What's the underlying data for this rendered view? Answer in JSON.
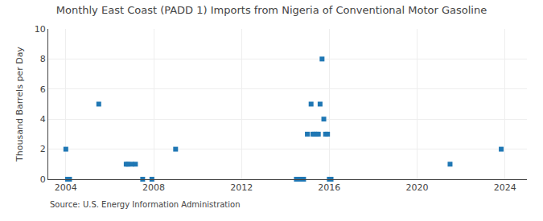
{
  "chart_data": {
    "type": "scatter",
    "title": "Monthly East Coast (PADD 1) Imports from Nigeria of Conventional Motor Gasoline",
    "ylabel": "Thousand Barrels per Day",
    "annotations": [
      "Source: U.S. Energy Information Administration"
    ],
    "x": [
      2004.0,
      2004.08,
      2004.17,
      2005.5,
      2006.75,
      2006.83,
      2007.0,
      2007.17,
      2007.5,
      2007.92,
      2009.0,
      2014.5,
      2014.67,
      2014.83,
      2015.0,
      2015.17,
      2015.25,
      2015.33,
      2015.42,
      2015.5,
      2015.58,
      2015.67,
      2015.75,
      2015.83,
      2015.92,
      2016.0,
      2016.08,
      2021.5,
      2023.83
    ],
    "values": [
      2,
      0,
      0,
      5,
      1,
      1,
      1,
      1,
      0,
      0,
      2,
      0,
      0,
      0,
      3,
      5,
      3,
      3,
      3,
      3,
      5,
      8,
      4,
      3,
      3,
      0,
      0,
      1,
      2
    ],
    "xlim": [
      2003.2,
      2025.0
    ],
    "xticks": [
      2004,
      2008,
      2012,
      2016,
      2020,
      2024
    ],
    "ylim": [
      0,
      10
    ],
    "yticks": [
      0,
      2,
      4,
      6,
      8,
      10
    ],
    "grid": true,
    "marker": "square"
  }
}
